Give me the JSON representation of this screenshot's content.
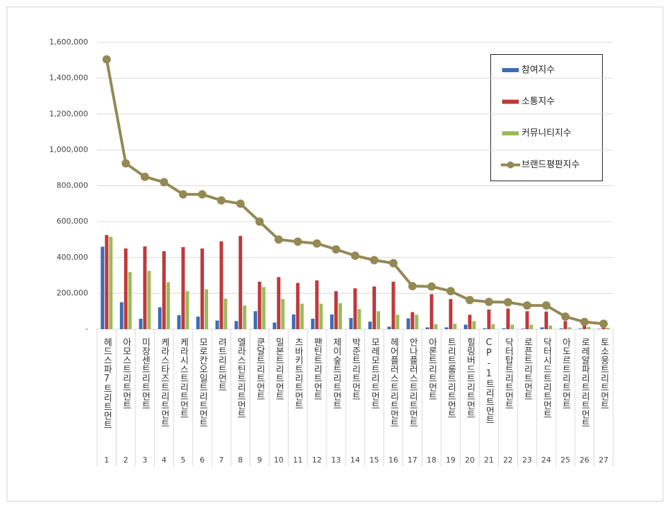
{
  "chart_data": {
    "type": "bar",
    "categories": [
      "헤드스파7트리트먼트",
      "아모스트리트먼트",
      "미장센트리트먼트",
      "케라스타즈트리트먼트",
      "케라시스트리트먼트",
      "모로칸오일트리트먼트",
      "려트리트먼트",
      "엘라스틴트리트먼트",
      "쿤달트리트먼트",
      "밀본트리트먼트",
      "츠바키트리트먼트",
      "팬틴트리트먼트",
      "제이숲트리트먼트",
      "박준트리트먼트",
      "모레모트리트먼트",
      "헤어플러스트리트먼트",
      "안나플러스트리트먼트",
      "아론트리트먼트",
      "트리트룸트리트먼트",
      "힐링버드트리트먼트",
      "CP-1트리트먼트",
      "닥터탑트리트먼트",
      "로픈트리트먼트",
      "닥터시드트리트먼트",
      "아도르트리트먼트",
      "로레알파리트리트먼트",
      "토소웅트리트먼트"
    ],
    "ranks": [
      1,
      2,
      3,
      4,
      5,
      6,
      7,
      8,
      9,
      10,
      11,
      12,
      13,
      14,
      15,
      16,
      17,
      18,
      19,
      20,
      21,
      22,
      23,
      24,
      25,
      26,
      27
    ],
    "series": [
      {
        "name": "참여지수",
        "type": "bar",
        "color": "#3c6db5",
        "values": [
          460000,
          150000,
          58000,
          122000,
          78000,
          70000,
          48000,
          45000,
          100000,
          37000,
          82000,
          58000,
          82000,
          62000,
          42000,
          14000,
          60000,
          10000,
          10000,
          25000,
          5000,
          5000,
          3000,
          10000,
          4000,
          3000,
          2000
        ]
      },
      {
        "name": "소통지수",
        "type": "bar",
        "color": "#c0393b",
        "values": [
          525000,
          450000,
          462000,
          435000,
          458000,
          450000,
          490000,
          520000,
          265000,
          290000,
          258000,
          272000,
          212000,
          228000,
          238000,
          265000,
          95000,
          195000,
          168000,
          80000,
          110000,
          115000,
          100000,
          98000,
          45000,
          20000,
          18000
        ]
      },
      {
        "name": "커뮤니티지수",
        "type": "bar",
        "color": "#9bbb59",
        "values": [
          515000,
          318000,
          325000,
          262000,
          212000,
          222000,
          170000,
          132000,
          235000,
          168000,
          142000,
          142000,
          145000,
          112000,
          100000,
          80000,
          80000,
          28000,
          30000,
          45000,
          28000,
          25000,
          25000,
          20000,
          10000,
          12000,
          8000
        ]
      },
      {
        "name": "브랜드평판지수",
        "type": "line",
        "color": "#938953",
        "values": [
          1505000,
          925000,
          850000,
          820000,
          752000,
          752000,
          718000,
          700000,
          600000,
          500000,
          488000,
          478000,
          445000,
          410000,
          385000,
          368000,
          240000,
          238000,
          212000,
          162000,
          152000,
          150000,
          132000,
          132000,
          70000,
          40000,
          30000
        ]
      }
    ],
    "ylim": [
      0,
      1600000
    ],
    "yticks": [
      {
        "value": 0,
        "label": "-"
      },
      {
        "value": 200000,
        "label": "200,000"
      },
      {
        "value": 400000,
        "label": "400,000"
      },
      {
        "value": 600000,
        "label": "600,000"
      },
      {
        "value": 800000,
        "label": "800,000"
      },
      {
        "value": 1000000,
        "label": "1,000,000"
      },
      {
        "value": 1200000,
        "label": "1,200,000"
      },
      {
        "value": 1400000,
        "label": "1,400,000"
      },
      {
        "value": 1600000,
        "label": "1,600,000"
      }
    ],
    "grid": true
  }
}
